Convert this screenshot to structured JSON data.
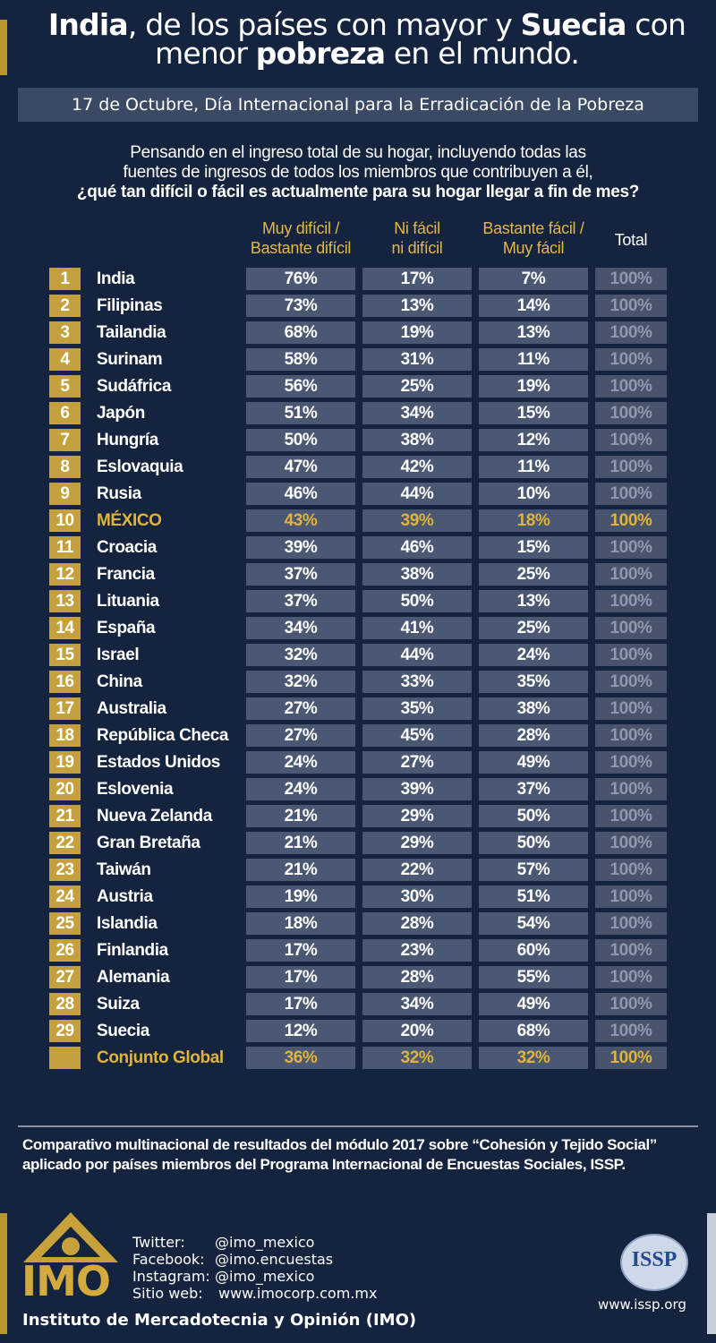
{
  "header": {
    "title_lines": [
      [
        {
          "text": "India",
          "bold": true
        },
        {
          "text": ", de los países con mayor y ",
          "bold": false
        },
        {
          "text": "Suecia",
          "bold": true
        },
        {
          "text": " con",
          "bold": false
        }
      ],
      [
        {
          "text": "menor ",
          "bold": false
        },
        {
          "text": "pobreza",
          "bold": true
        },
        {
          "text": " en el mundo.",
          "bold": false
        }
      ]
    ],
    "subtitle": "17 de Octubre, Día Internacional para la Erradicación de la Pobreza"
  },
  "question": [
    "Pensando en el ingreso total de su hogar, incluyendo todas las",
    "fuentes de ingresos de todos los miembros que contribuyen a él,",
    "¿qué tan difícil o fácil es actualmente para su hogar llegar a fin de mes?"
  ],
  "table": {
    "columns": [
      [
        "Muy difícil /",
        "Bastante difícil"
      ],
      [
        "Ni fácil",
        "ni difícil"
      ],
      [
        "Bastante fácil /",
        "Muy fácil"
      ],
      [
        "Total"
      ]
    ],
    "highlight_rows": [
      9
    ],
    "rows": [
      [
        "1",
        "India",
        "76%",
        "17%",
        "7%",
        "100%"
      ],
      [
        "2",
        "Filipinas",
        "73%",
        "13%",
        "14%",
        "100%"
      ],
      [
        "3",
        "Tailandia",
        "68%",
        "19%",
        "13%",
        "100%"
      ],
      [
        "4",
        "Surinam",
        "58%",
        "31%",
        "11%",
        "100%"
      ],
      [
        "5",
        "Sudáfrica",
        "56%",
        "25%",
        "19%",
        "100%"
      ],
      [
        "6",
        "Japón",
        "51%",
        "34%",
        "15%",
        "100%"
      ],
      [
        "7",
        "Hungría",
        "50%",
        "38%",
        "12%",
        "100%"
      ],
      [
        "8",
        "Eslovaquia",
        "47%",
        "42%",
        "11%",
        "100%"
      ],
      [
        "9",
        "Rusia",
        "46%",
        "44%",
        "10%",
        "100%"
      ],
      [
        "10",
        "MÉXICO",
        "43%",
        "39%",
        "18%",
        "100%"
      ],
      [
        "11",
        "Croacia",
        "39%",
        "46%",
        "15%",
        "100%"
      ],
      [
        "12",
        "Francia",
        "37%",
        "38%",
        "25%",
        "100%"
      ],
      [
        "13",
        "Lituania",
        "37%",
        "50%",
        "13%",
        "100%"
      ],
      [
        "14",
        "España",
        "34%",
        "41%",
        "25%",
        "100%"
      ],
      [
        "15",
        "Israel",
        "32%",
        "44%",
        "24%",
        "100%"
      ],
      [
        "16",
        "China",
        "32%",
        "33%",
        "35%",
        "100%"
      ],
      [
        "17",
        "Australia",
        "27%",
        "35%",
        "38%",
        "100%"
      ],
      [
        "18",
        "República Checa",
        "27%",
        "45%",
        "28%",
        "100%"
      ],
      [
        "19",
        "Estados Unidos",
        "24%",
        "27%",
        "49%",
        "100%"
      ],
      [
        "20",
        "Eslovenia",
        "24%",
        "39%",
        "37%",
        "100%"
      ],
      [
        "21",
        "Nueva Zelanda",
        "21%",
        "29%",
        "50%",
        "100%"
      ],
      [
        "22",
        "Gran Bretaña",
        "21%",
        "29%",
        "50%",
        "100%"
      ],
      [
        "23",
        "Taiwán",
        "21%",
        "22%",
        "57%",
        "100%"
      ],
      [
        "24",
        "Austria",
        "19%",
        "30%",
        "51%",
        "100%"
      ],
      [
        "25",
        "Islandia",
        "18%",
        "28%",
        "54%",
        "100%"
      ],
      [
        "26",
        "Finlandia",
        "17%",
        "23%",
        "60%",
        "100%"
      ],
      [
        "27",
        "Alemania",
        "17%",
        "28%",
        "55%",
        "100%"
      ],
      [
        "28",
        "Suiza",
        "17%",
        "34%",
        "49%",
        "100%"
      ],
      [
        "29",
        "Suecia",
        "12%",
        "20%",
        "68%",
        "100%"
      ]
    ],
    "global_row": {
      "label": "Conjunto Global",
      "cells": [
        "36%",
        "32%",
        "32%",
        "100%"
      ]
    }
  },
  "footer": {
    "note": "Comparativo multinacional de resultados del módulo 2017 sobre “Cohesión y Tejido Social” aplicado por países miembros del Programa Internacional de Encuestas Sociales, ISSP.",
    "social": [
      [
        "Twitter:",
        "@imo_mexico"
      ],
      [
        "Facebook:",
        "@imo.encuestas"
      ],
      [
        "Instagram:",
        "@imo_mexico"
      ],
      [
        "Sitio web:",
        "www.imocorp.com.mx"
      ]
    ],
    "imo_logo": "IMO",
    "organization": "Instituto de Mercadotecnia y Opinión (IMO)",
    "issp_logo": "ISSP",
    "issp_url": "www.issp.org"
  }
}
